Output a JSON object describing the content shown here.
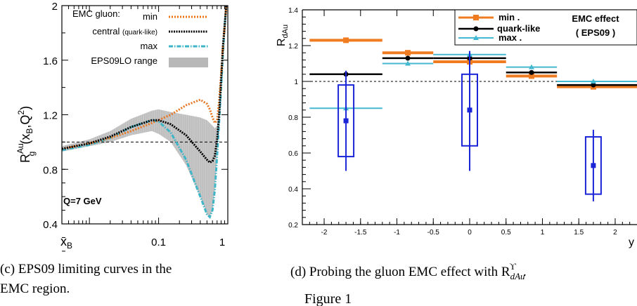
{
  "chart_data": [
    {
      "type": "line",
      "xscale": "log",
      "xlim": [
        0.004,
        1.0
      ],
      "ylim": [
        0.4,
        2.0
      ],
      "xlabel": "x_B",
      "ylabel": "R_g^Au(x_B,Q^2)",
      "x_ticks": [
        "0.1",
        "1"
      ],
      "y_ticks": [
        "0.4",
        "0.8",
        "1.2",
        "1.6",
        "2"
      ],
      "annotation": "Q=7 GeV",
      "legend_title": "EMC gluon:",
      "legend": {
        "min": "min",
        "central_pre": "central",
        "central_small": "(quark-like)",
        "max": "max",
        "range": "EPS09LO range"
      },
      "colors": {
        "min": "#e87722",
        "central": "#000000",
        "max": "#3fb5c8",
        "band": "#b8b8b8"
      },
      "series": [
        {
          "name": "min",
          "x": [
            0.004,
            0.01,
            0.02,
            0.04,
            0.08,
            0.15,
            0.25,
            0.4,
            0.5,
            0.55,
            0.6,
            0.65,
            0.7,
            0.75,
            0.8,
            0.85,
            0.9,
            0.95
          ],
          "y": [
            0.95,
            0.99,
            1.03,
            1.08,
            1.14,
            1.2,
            1.27,
            1.31,
            1.28,
            1.24,
            1.18,
            1.14,
            1.16,
            1.3,
            1.5,
            1.7,
            1.85,
            2.0
          ]
        },
        {
          "name": "central",
          "x": [
            0.004,
            0.01,
            0.02,
            0.04,
            0.08,
            0.1,
            0.15,
            0.25,
            0.4,
            0.5,
            0.55,
            0.6,
            0.65,
            0.7,
            0.75,
            0.8,
            0.85,
            0.9,
            0.95
          ],
          "y": [
            0.95,
            0.99,
            1.04,
            1.11,
            1.16,
            1.16,
            1.13,
            1.05,
            0.93,
            0.87,
            0.85,
            0.86,
            0.9,
            1.02,
            1.2,
            1.45,
            1.7,
            1.85,
            2.0
          ]
        },
        {
          "name": "max",
          "x": [
            0.004,
            0.01,
            0.02,
            0.04,
            0.08,
            0.1,
            0.15,
            0.25,
            0.4,
            0.5,
            0.55,
            0.6,
            0.65,
            0.7,
            0.75,
            0.8,
            0.85,
            0.9,
            0.95
          ],
          "y": [
            0.94,
            0.98,
            1.03,
            1.11,
            1.16,
            1.15,
            1.07,
            0.87,
            0.6,
            0.47,
            0.45,
            0.5,
            0.65,
            0.9,
            1.15,
            1.4,
            1.65,
            1.85,
            2.0
          ]
        }
      ],
      "band": {
        "x": [
          0.004,
          0.01,
          0.02,
          0.04,
          0.08,
          0.1,
          0.15,
          0.25,
          0.4,
          0.5,
          0.55,
          0.6,
          0.65,
          0.7,
          0.75,
          0.8,
          0.85,
          0.9,
          0.95
        ],
        "lower": [
          0.93,
          0.97,
          1.0,
          1.05,
          1.08,
          1.06,
          1.0,
          0.83,
          0.6,
          0.47,
          0.45,
          0.5,
          0.65,
          0.9,
          1.15,
          1.4,
          1.65,
          1.85,
          2.0
        ],
        "upper": [
          0.97,
          1.02,
          1.08,
          1.17,
          1.23,
          1.24,
          1.22,
          1.2,
          1.18,
          1.16,
          1.14,
          1.12,
          1.1,
          1.12,
          1.25,
          1.5,
          1.7,
          1.85,
          2.0
        ]
      },
      "reference_line": 1.0,
      "caption": "(c) EPS09 limiting curves in the EMC region."
    },
    {
      "type": "scatter",
      "xlim": [
        -2.3,
        2.3
      ],
      "ylim": [
        0.2,
        1.4
      ],
      "xlabel": "y",
      "ylabel": "R_dAu",
      "x_ticks": [
        "-2",
        "-1.5",
        "-1",
        "-0.5",
        "0",
        "0.5",
        "1",
        "1.5",
        "2"
      ],
      "y_ticks": [
        "0.2",
        "0.4",
        "0.6",
        "0.8",
        "1",
        "1.2",
        "1.4"
      ],
      "legend": {
        "min": "min .",
        "quark": "quark-like",
        "max": "max ."
      },
      "legend_box": [
        "EMC effect",
        "( EPS09 )"
      ],
      "colors": {
        "min": "#f07c22",
        "quark": "#000000",
        "max": "#44b8d0",
        "data": "#1a25d8"
      },
      "bin_series": [
        {
          "name": "min",
          "bins": [
            [
              -2.2,
              -1.2,
              1.23
            ],
            [
              -1.2,
              -0.5,
              1.16
            ],
            [
              -0.5,
              0.5,
              1.11
            ],
            [
              0.5,
              1.2,
              1.03
            ],
            [
              1.2,
              2.3,
              0.97
            ]
          ],
          "markers": [
            -1.7,
            -0.85,
            0.0,
            0.85,
            1.7
          ]
        },
        {
          "name": "quark-like",
          "bins": [
            [
              -2.2,
              -1.2,
              1.04
            ],
            [
              -1.2,
              -0.5,
              1.13
            ],
            [
              -0.5,
              0.5,
              1.13
            ],
            [
              0.5,
              1.2,
              1.05
            ],
            [
              1.2,
              2.3,
              0.98
            ]
          ],
          "markers": [
            -1.7,
            -0.85,
            0.0,
            0.85,
            1.7
          ]
        },
        {
          "name": "max",
          "bins": [
            [
              -2.2,
              -1.2,
              0.85
            ],
            [
              -1.2,
              -0.5,
              1.1
            ],
            [
              -0.5,
              0.5,
              1.15
            ],
            [
              0.5,
              1.2,
              1.08
            ],
            [
              1.2,
              2.3,
              1.0
            ]
          ],
          "markers": [
            -1.7,
            -0.85,
            0.0,
            0.85,
            1.7
          ]
        }
      ],
      "data_points": [
        {
          "x": -1.7,
          "y": 0.78,
          "yerr_lo": 0.5,
          "yerr_hi": 1.06,
          "box_lo": 0.58,
          "box_hi": 0.98
        },
        {
          "x": 0.0,
          "y": 0.84,
          "yerr_lo": 0.5,
          "yerr_hi": 1.17,
          "box_lo": 0.64,
          "box_hi": 1.04
        },
        {
          "x": 1.7,
          "y": 0.53,
          "yerr_lo": 0.33,
          "yerr_hi": 0.73,
          "box_lo": 0.37,
          "box_hi": 0.69
        }
      ],
      "reference_line": 1.0,
      "caption": "(d) Probing the gluon EMC effect with R",
      "figure_label": "Figure 1"
    }
  ]
}
